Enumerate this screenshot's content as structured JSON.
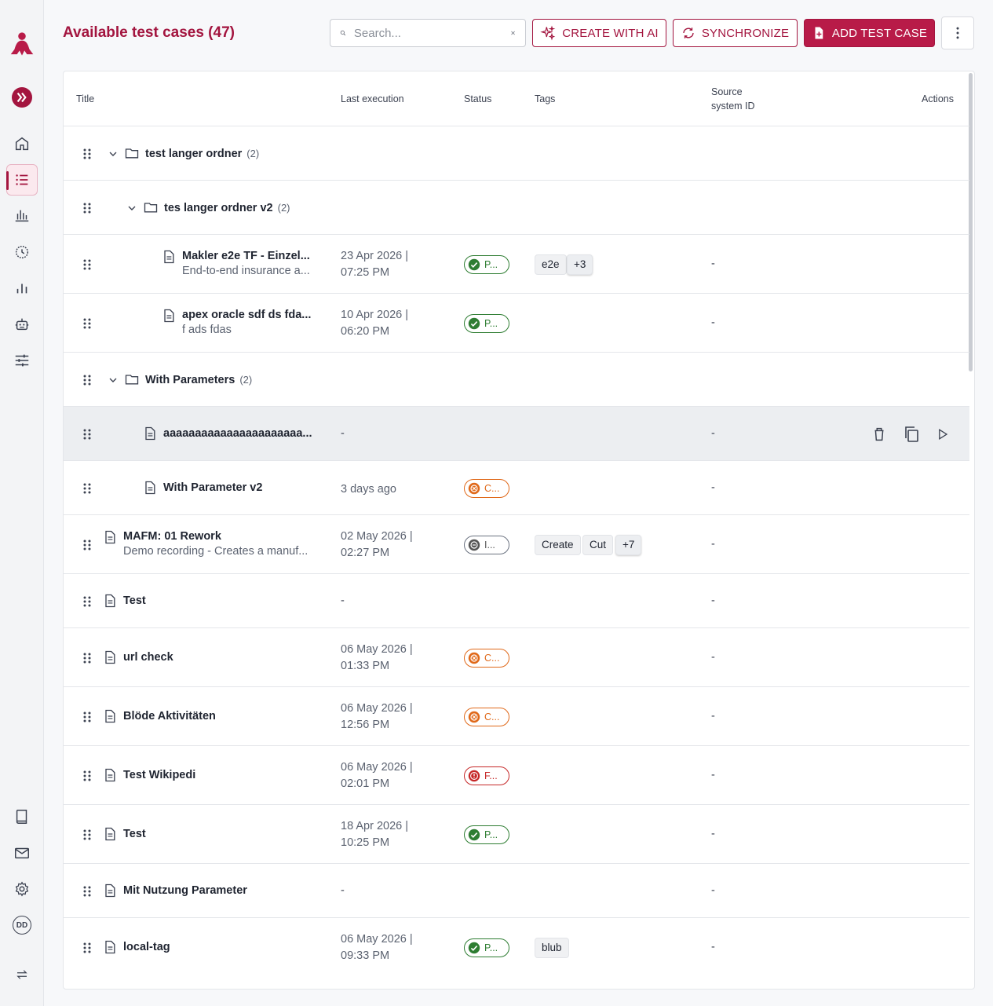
{
  "sidebar": {
    "avatar_initials": "DD",
    "items": [
      "logo-icon",
      "expand-icon",
      "home-icon",
      "list-icon",
      "chart-icon",
      "history-icon",
      "bar-chart-icon",
      "robot-icon",
      "sliders-icon",
      "book-icon",
      "mail-icon",
      "gear-icon",
      "avatar",
      "swap-icon"
    ]
  },
  "header": {
    "title": "Available test cases (47)",
    "search_placeholder": "Search...",
    "create_ai_label": "CREATE WITH AI",
    "sync_label": "SYNCHRONIZE",
    "add_label": "ADD TEST CASE"
  },
  "table": {
    "columns": {
      "title": "Title",
      "last_execution": "Last execution",
      "status": "Status",
      "tags": "Tags",
      "source_line1": "Source",
      "source_line2": "system ID",
      "actions": "Actions"
    },
    "rows": [
      {
        "type": "folder",
        "name": "test langer ordner",
        "count": "(2)"
      },
      {
        "type": "folder",
        "name": "tes langer ordner v2",
        "count": "(2)"
      },
      {
        "type": "case",
        "name": "Makler e2e TF - Einzel...",
        "desc": "End-to-end insurance a...",
        "date1": "23 Apr 2026 |",
        "date2": "07:25 PM",
        "status": "P...",
        "tags": [
          "e2e",
          "+3"
        ],
        "source": "-"
      },
      {
        "type": "case",
        "name": "apex oracle sdf ds fda...",
        "desc": "f ads fdas",
        "date1": "10 Apr 2026 |",
        "date2": "06:20 PM",
        "status": "P...",
        "tags": [],
        "source": "-"
      },
      {
        "type": "folder",
        "name": "With Parameters",
        "count": "(2)"
      },
      {
        "type": "case",
        "name": "aaaaaaaaaaaaaaaaaaaaaa...",
        "last": "-",
        "source": "-"
      },
      {
        "type": "case",
        "name": "With Parameter v2",
        "last": "3 days ago",
        "status": "C...",
        "source": "-"
      },
      {
        "type": "case",
        "name": "MAFM: 01 Rework",
        "desc": "Demo recording - Creates a manuf...",
        "date1": "02 May 2026 |",
        "date2": "02:27 PM",
        "status": "I...",
        "tags": [
          "Create",
          "Cut",
          "+7"
        ],
        "source": "-"
      },
      {
        "type": "case",
        "name": "Test",
        "last": "-",
        "source": "-"
      },
      {
        "type": "case",
        "name": "url check",
        "date1": "06 May 2026 |",
        "date2": "01:33 PM",
        "status": "C...",
        "source": "-"
      },
      {
        "type": "case",
        "name": "Blöde Aktivitäten",
        "date1": "06 May 2026 |",
        "date2": "12:56 PM",
        "status": "C...",
        "source": "-"
      },
      {
        "type": "case",
        "name": "Test Wikipedi",
        "date1": "06 May 2026 |",
        "date2": "02:01 PM",
        "status": "F...",
        "source": "-"
      },
      {
        "type": "case",
        "name": "Test",
        "date1": "18 Apr 2026 |",
        "date2": "10:25 PM",
        "status": "P...",
        "source": "-"
      },
      {
        "type": "case",
        "name": "Mit Nutzung Parameter",
        "last": "-",
        "source": "-"
      },
      {
        "type": "case",
        "name": "local-tag",
        "date1": "06 May 2026 |",
        "date2": "09:33 PM",
        "status": "P...",
        "tags": [
          "blub"
        ],
        "source": "-"
      }
    ]
  },
  "colors": {
    "accent": "#a3153f",
    "primary_button": "#b81b48",
    "passed": "#2e7d32",
    "cancelled": "#e0691a",
    "failed": "#c62828",
    "ignored": "#6b7280"
  }
}
